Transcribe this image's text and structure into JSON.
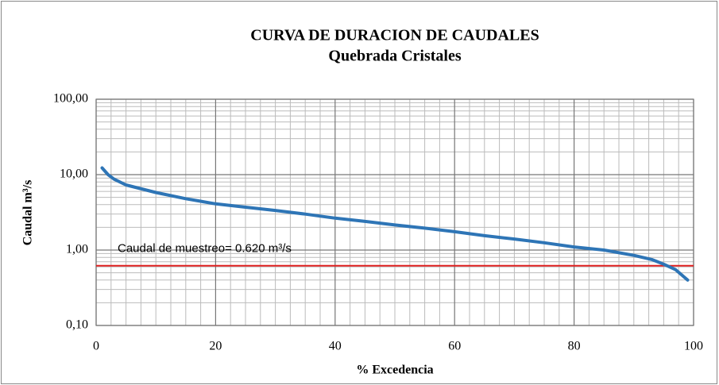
{
  "chart_data": {
    "type": "line",
    "title": "CURVA DE DURACION DE CAUDALES",
    "subtitle": "Quebrada Cristales",
    "x_label": "% Excedencia",
    "y_label": "Caudal m³/s",
    "log_y": true,
    "grid": true,
    "xlim": [
      0,
      100
    ],
    "ylim": [
      0.1,
      100
    ],
    "xticks": [
      0,
      20,
      40,
      60,
      80,
      100
    ],
    "yticks": [
      {
        "value": 0.1,
        "label": "0,10"
      },
      {
        "value": 1,
        "label": "1,00"
      },
      {
        "value": 10,
        "label": "10,00"
      },
      {
        "value": 100,
        "label": "100,00"
      }
    ],
    "xminorticks": [
      2.5,
      5,
      7.5,
      10,
      12.5,
      15,
      17.5,
      22.5,
      25,
      27.5,
      30,
      32.5,
      35,
      37.5,
      42.5,
      45,
      47.5,
      50,
      52.5,
      55,
      57.5,
      62.5,
      65,
      67.5,
      70,
      72.5,
      75,
      77.5,
      82.5,
      85,
      87.5,
      90,
      92.5,
      95,
      97.5
    ],
    "yminorticks": [
      0.2,
      0.3,
      0.4,
      0.5,
      0.6,
      0.7,
      0.8,
      0.9,
      2,
      3,
      4,
      5,
      6,
      7,
      8,
      9,
      20,
      30,
      40,
      50,
      60,
      70,
      80,
      90
    ],
    "series": [
      {
        "name": "Caudal",
        "color": "#2e75b6",
        "x": [
          1,
          2,
          3,
          5,
          10,
          15,
          20,
          25,
          30,
          35,
          40,
          45,
          50,
          55,
          60,
          65,
          70,
          75,
          80,
          85,
          90,
          93,
          95,
          97,
          99
        ],
        "values": [
          12.3,
          10,
          8.7,
          7.3,
          5.8,
          4.8,
          4.1,
          3.7,
          3.35,
          3.0,
          2.65,
          2.4,
          2.15,
          1.95,
          1.75,
          1.55,
          1.4,
          1.25,
          1.1,
          1.0,
          0.85,
          0.75,
          0.65,
          0.55,
          0.4
        ]
      }
    ],
    "reference_line": {
      "value": 0.62,
      "label": "Caudal de muestreo= 0.620 m³/s",
      "color": "#e02020"
    }
  }
}
